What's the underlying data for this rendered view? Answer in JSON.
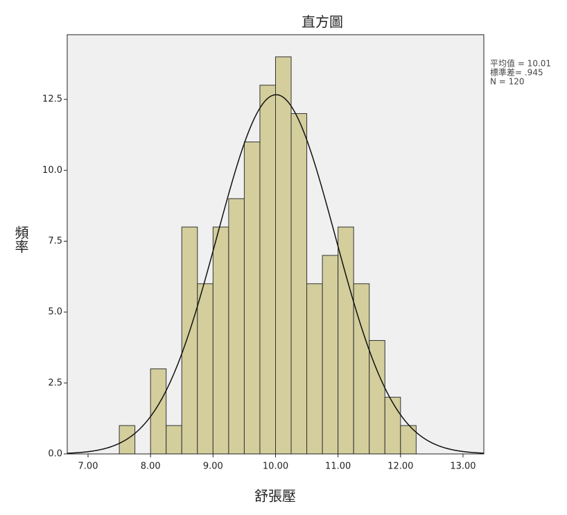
{
  "chart_data": {
    "type": "histogram",
    "title": "直方圖",
    "x_label": "舒張壓",
    "y_label": "頻率",
    "bins": [
      7.5,
      7.75,
      8.0,
      8.25,
      8.5,
      8.75,
      9.0,
      9.25,
      9.5,
      9.75,
      10.0,
      10.25,
      10.5,
      10.75,
      11.0,
      11.25,
      11.5,
      11.75,
      12.0,
      12.25
    ],
    "values": [
      1,
      0,
      3,
      1,
      8,
      6,
      8,
      9,
      11,
      13,
      14,
      12,
      6,
      7,
      8,
      6,
      4,
      2,
      1
    ],
    "color": "#d3ce9c",
    "xlim": [
      6.667,
      13.333
    ],
    "ylim": [
      0,
      14.78
    ],
    "xticks": [
      {
        "value": 7,
        "label": "7.00"
      },
      {
        "value": 8,
        "label": "8.00"
      },
      {
        "value": 9,
        "label": "9.00"
      },
      {
        "value": 10,
        "label": "10.00"
      },
      {
        "value": 11,
        "label": "11.00"
      },
      {
        "value": 12,
        "label": "12.00"
      },
      {
        "value": 13,
        "label": "13.00"
      }
    ],
    "yticks": [
      {
        "value": 0,
        "label": "0.0"
      },
      {
        "value": 2.5,
        "label": "2.5"
      },
      {
        "value": 5,
        "label": "5.0"
      },
      {
        "value": 7.5,
        "label": "7.5"
      },
      {
        "value": 10,
        "label": "10.0"
      },
      {
        "value": 12.5,
        "label": "12.5"
      }
    ],
    "normal_curve": {
      "mean": 10.01,
      "sd": 0.945,
      "n": 120
    },
    "stats_text": [
      "平均值 = 10.01",
      "標準差= .945",
      "N = 120"
    ]
  }
}
